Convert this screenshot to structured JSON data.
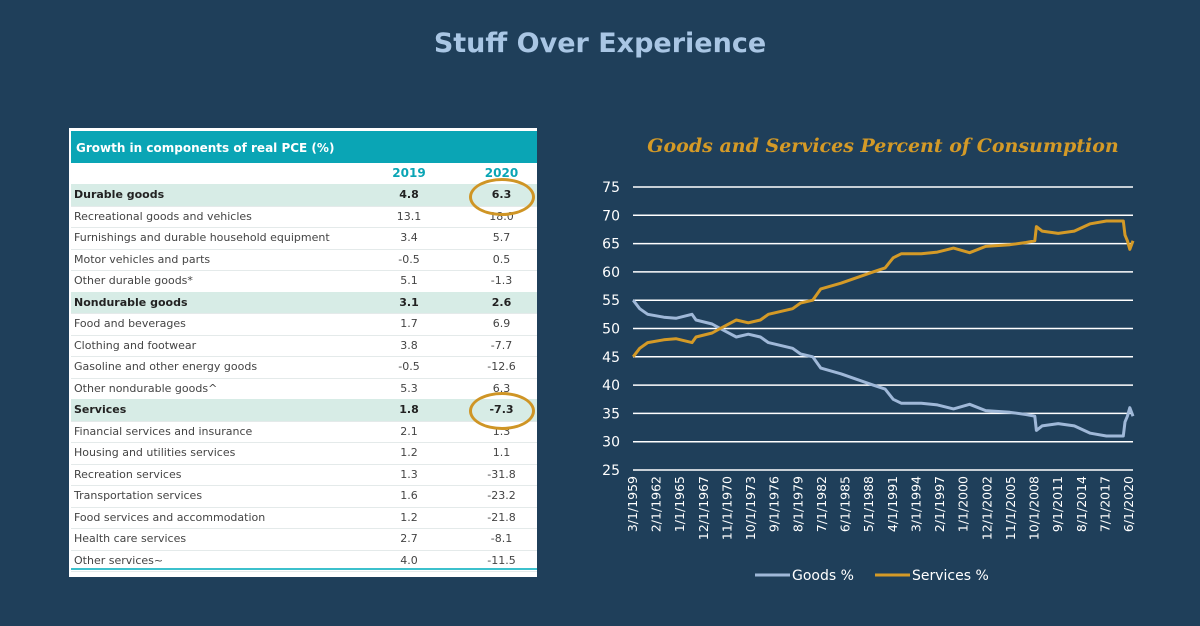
{
  "title": "Stuff Over Experience",
  "table": {
    "title": "Growth in components of real PCE (%)",
    "columns": [
      "2019",
      "2020"
    ],
    "rows": [
      {
        "label": "Durable goods",
        "v2019": "4.8",
        "v2020": "6.3",
        "bold": true,
        "highlight": true
      },
      {
        "label": "Recreational goods and vehicles",
        "v2019": "13.1",
        "v2020": "18.0"
      },
      {
        "label": "Furnishings and durable household equipment",
        "v2019": "3.4",
        "v2020": "5.7"
      },
      {
        "label": "Motor vehicles and parts",
        "v2019": "-0.5",
        "v2020": "0.5"
      },
      {
        "label": "Other durable goods*",
        "v2019": "5.1",
        "v2020": "-1.3"
      },
      {
        "label": "Nondurable goods",
        "v2019": "3.1",
        "v2020": "2.6",
        "bold": true
      },
      {
        "label": "Food and beverages",
        "v2019": "1.7",
        "v2020": "6.9"
      },
      {
        "label": "Clothing and footwear",
        "v2019": "3.8",
        "v2020": "-7.7"
      },
      {
        "label": "Gasoline and other energy goods",
        "v2019": "-0.5",
        "v2020": "-12.6"
      },
      {
        "label": "Other nondurable goods^",
        "v2019": "5.3",
        "v2020": "6.3"
      },
      {
        "label": "Services",
        "v2019": "1.8",
        "v2020": "-7.3",
        "bold": true,
        "highlight": true
      },
      {
        "label": "Financial services and insurance",
        "v2019": "2.1",
        "v2020": "1.3"
      },
      {
        "label": "Housing and utilities services",
        "v2019": "1.2",
        "v2020": "1.1"
      },
      {
        "label": "Recreation services",
        "v2019": "1.3",
        "v2020": "-31.8"
      },
      {
        "label": "Transportation services",
        "v2019": "1.6",
        "v2020": "-23.2"
      },
      {
        "label": "Food services and accommodation",
        "v2019": "1.2",
        "v2020": "-21.8"
      },
      {
        "label": "Health care services",
        "v2019": "2.7",
        "v2020": "-8.1"
      },
      {
        "label": "Other services~",
        "v2019": "4.0",
        "v2020": "-11.5"
      }
    ],
    "highlight_color": "#cf9525"
  },
  "chart_data": {
    "type": "line",
    "title": "Goods and Services Percent of Consumption",
    "ylim": [
      25,
      75
    ],
    "yticks": [
      25,
      30,
      35,
      40,
      45,
      50,
      55,
      60,
      65,
      70,
      75
    ],
    "xticklabels": [
      "3/1/1959",
      "2/1/1962",
      "1/1/1965",
      "12/1/1967",
      "11/1/1970",
      "10/1/1973",
      "9/1/1976",
      "8/1/1979",
      "7/1/1982",
      "6/1/1985",
      "5/1/1988",
      "4/1/1991",
      "3/1/1994",
      "2/1/1997",
      "1/1/2000",
      "12/1/2002",
      "11/1/2005",
      "10/1/2008",
      "9/1/2011",
      "8/1/2014",
      "7/1/2017",
      "6/1/2020"
    ],
    "xrange": [
      1959.17,
      2021.3
    ],
    "grid": true,
    "legend": "bottom",
    "x": [
      1959.2,
      1960,
      1961,
      1963,
      1964.5,
      1966.5,
      1967,
      1969,
      1970,
      1972,
      1973.5,
      1975,
      1976,
      1979,
      1980,
      1981.5,
      1982.5,
      1985,
      1987,
      1989,
      1990.5,
      1991.5,
      1992.5,
      1995,
      1997,
      1999,
      2001,
      2003,
      2006,
      2008,
      2009.1,
      2009.3,
      2010,
      2012,
      2014,
      2016,
      2018,
      2020.1,
      2020.3,
      2020.6,
      2020.9,
      2021.3
    ],
    "series": [
      {
        "name": "Goods %",
        "color": "#9fb8d8",
        "values": [
          55,
          53.5,
          52.5,
          52,
          51.8,
          52.5,
          51.5,
          50.8,
          50,
          48.5,
          49,
          48.5,
          47.5,
          46.5,
          45.5,
          45,
          43,
          42,
          41,
          40,
          39.3,
          37.5,
          36.8,
          36.8,
          36.5,
          35.8,
          36.6,
          35.5,
          35.2,
          34.8,
          34.5,
          32,
          32.8,
          33.2,
          32.8,
          31.5,
          31,
          31,
          33.5,
          34.5,
          36,
          34.5
        ]
      },
      {
        "name": "Services %",
        "color": "#d49a27",
        "values": [
          45,
          46.5,
          47.5,
          48,
          48.2,
          47.5,
          48.5,
          49.2,
          50,
          51.5,
          51,
          51.5,
          52.5,
          53.5,
          54.5,
          55,
          57,
          58,
          59,
          60,
          60.7,
          62.5,
          63.2,
          63.2,
          63.5,
          64.2,
          63.4,
          64.5,
          64.8,
          65.2,
          65.5,
          68,
          67.2,
          66.8,
          67.2,
          68.5,
          69,
          69,
          66.5,
          65.5,
          64,
          65.5
        ]
      }
    ]
  }
}
